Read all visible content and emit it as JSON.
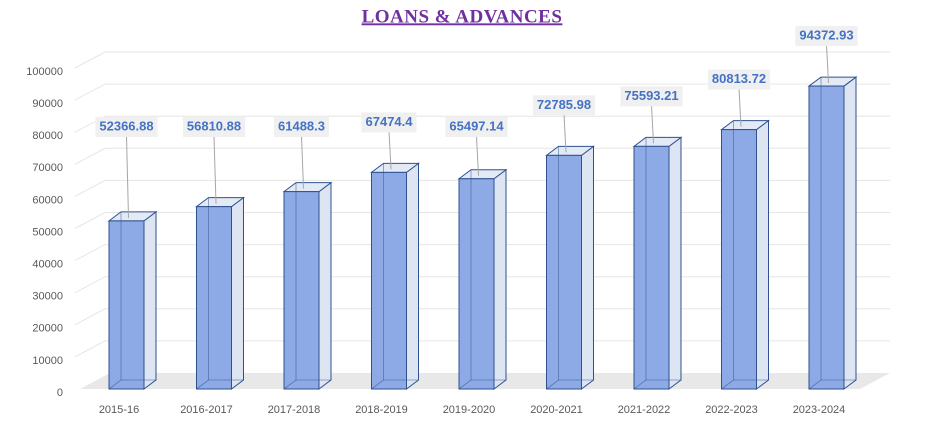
{
  "chart_data": {
    "type": "bar3d",
    "title": "LOANS & ADVANCES",
    "categories": [
      "2015-16",
      "2016-2017",
      "2017-2018",
      "2018-2019",
      "2019-2020",
      "2020-2021",
      "2021-2022",
      "2022-2023",
      "2023-2024"
    ],
    "values": [
      52366.88,
      56810.88,
      61488.3,
      67474.4,
      65497.14,
      72785.98,
      75593.21,
      80813.72,
      94372.93
    ],
    "color": "#8eaae6",
    "ylim": [
      0,
      100000
    ],
    "yticks": [
      0,
      10000,
      20000,
      30000,
      40000,
      50000,
      60000,
      70000,
      80000,
      90000,
      100000
    ],
    "grid": true
  }
}
